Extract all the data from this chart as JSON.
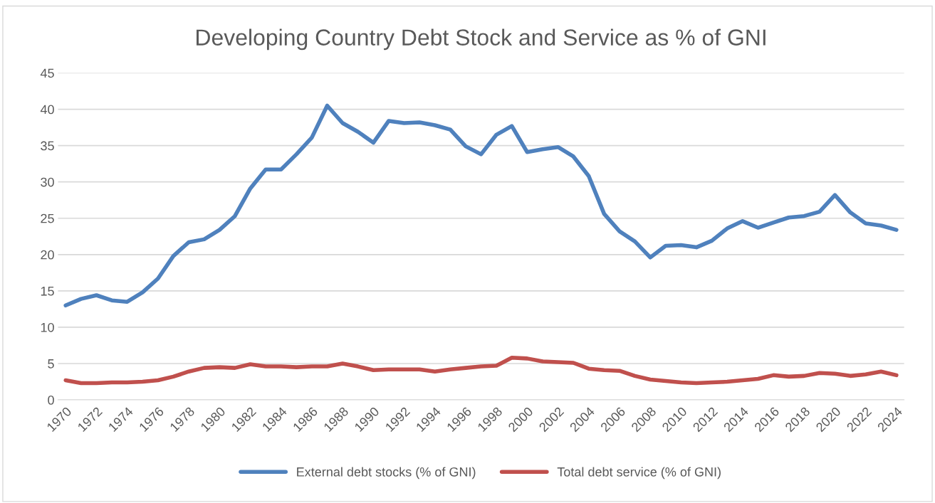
{
  "chart_data": {
    "type": "line",
    "title": "Developing Country Debt Stock and Service as % of GNI",
    "categories": [
      "1970",
      null,
      "1972",
      null,
      "1974",
      null,
      "1976",
      null,
      "1978",
      null,
      "1980",
      null,
      "1982",
      null,
      "1984",
      null,
      "1986",
      null,
      "1988",
      null,
      "1990",
      null,
      "1992",
      null,
      "1994",
      null,
      "1996",
      null,
      "1998",
      null,
      "2000",
      null,
      "2002",
      null,
      "2004",
      null,
      "2006",
      null,
      "2008",
      null,
      "2010",
      null,
      "2012",
      null,
      "2014",
      null,
      "2016",
      null,
      "2018",
      null,
      "2020",
      null,
      "2022",
      null,
      "2024"
    ],
    "series": [
      {
        "name": "External debt stocks (% of GNI)",
        "color": "#4f81bd",
        "values": [
          13.0,
          13.9,
          14.4,
          13.7,
          13.5,
          14.8,
          16.7,
          19.8,
          21.7,
          22.1,
          23.4,
          25.3,
          29.1,
          31.7,
          31.7,
          33.8,
          36.1,
          40.5,
          38.1,
          36.9,
          35.4,
          38.4,
          38.1,
          38.2,
          37.8,
          37.2,
          34.9,
          33.8,
          36.5,
          37.7,
          34.1,
          34.5,
          34.8,
          33.5,
          30.8,
          25.6,
          23.2,
          21.8,
          19.6,
          21.2,
          21.3,
          21.0,
          21.9,
          23.6,
          24.6,
          23.7,
          24.4,
          25.1,
          25.3,
          25.9,
          28.2,
          25.8,
          24.3,
          24.0,
          23.4
        ]
      },
      {
        "name": "Total debt service (% of GNI)",
        "color": "#c0504d",
        "values": [
          2.7,
          2.3,
          2.3,
          2.4,
          2.4,
          2.5,
          2.7,
          3.2,
          3.9,
          4.4,
          4.5,
          4.4,
          4.9,
          4.6,
          4.6,
          4.5,
          4.6,
          4.6,
          5.0,
          4.6,
          4.1,
          4.2,
          4.2,
          4.2,
          3.9,
          4.2,
          4.4,
          4.6,
          4.7,
          5.8,
          5.7,
          5.3,
          5.2,
          5.1,
          4.3,
          4.1,
          4.0,
          3.3,
          2.8,
          2.6,
          2.4,
          2.3,
          2.4,
          2.5,
          2.7,
          2.9,
          3.4,
          3.2,
          3.3,
          3.7,
          3.6,
          3.3,
          3.5,
          3.9,
          3.4
        ]
      }
    ],
    "ylim": [
      0,
      45
    ],
    "yticks": [
      0,
      5,
      10,
      15,
      20,
      25,
      30,
      35,
      40,
      45
    ],
    "grid": "y",
    "legend": "bottom",
    "marker": "none",
    "line_style": "solid"
  }
}
